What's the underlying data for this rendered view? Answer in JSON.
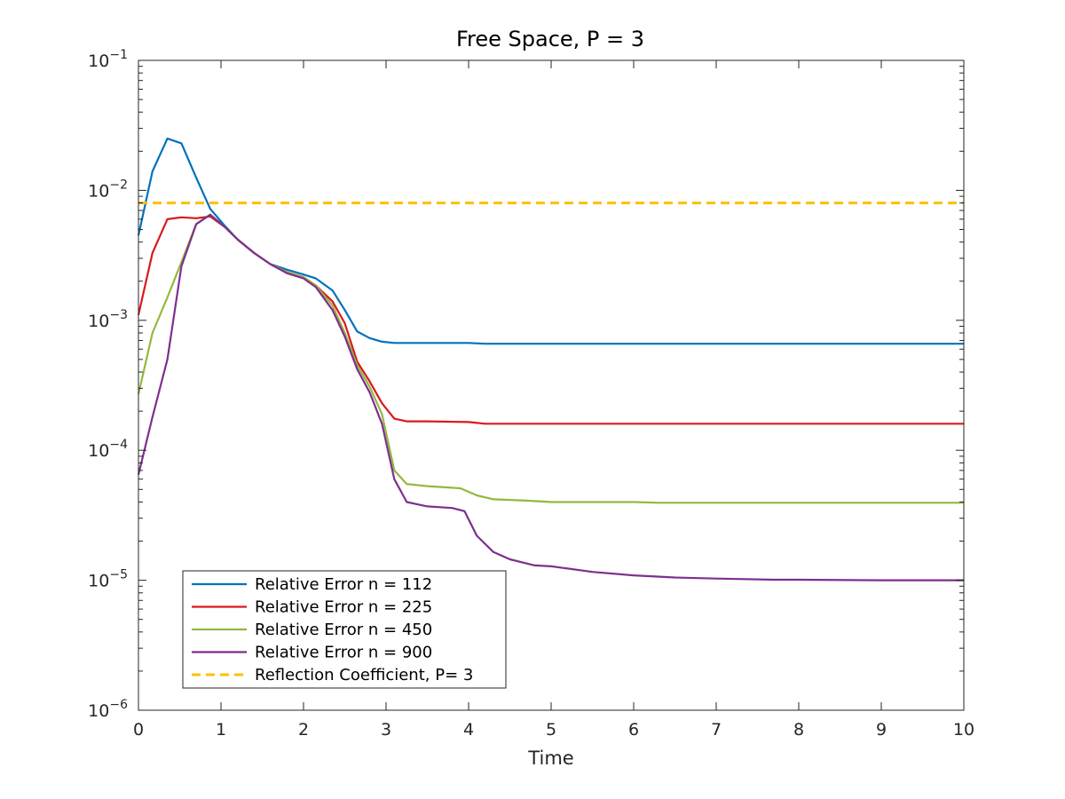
{
  "chart_data": {
    "type": "line",
    "title": "Free Space, P = 3",
    "xlabel": "Time",
    "ylabel": "",
    "xlim": [
      0,
      10
    ],
    "ylim": [
      1e-06,
      0.1
    ],
    "yscale": "log",
    "grid": false,
    "legend_position": "bottom-left",
    "x_ticks": [
      0,
      1,
      2,
      3,
      4,
      5,
      6,
      7,
      8,
      9,
      10
    ],
    "y_ticks": [
      {
        "value": 1e-06,
        "base": "10",
        "exp": "−6"
      },
      {
        "value": 1e-05,
        "base": "10",
        "exp": "−5"
      },
      {
        "value": 0.0001,
        "base": "10",
        "exp": "−4"
      },
      {
        "value": 0.001,
        "base": "10",
        "exp": "−3"
      },
      {
        "value": 0.01,
        "base": "10",
        "exp": "−2"
      },
      {
        "value": 0.1,
        "base": "10",
        "exp": "−1"
      }
    ],
    "series": [
      {
        "name": "Relative Error n = 112",
        "color": "#0072BD",
        "dash": "solid",
        "x": [
          0,
          0.17,
          0.35,
          0.52,
          0.7,
          0.87,
          1.05,
          1.2,
          1.4,
          1.6,
          1.8,
          2.0,
          2.15,
          2.35,
          2.5,
          2.65,
          2.8,
          2.95,
          3.1,
          3.5,
          4.0,
          4.2,
          5.0,
          6.0,
          7.0,
          8.0,
          9.0,
          10.0
        ],
        "y": [
          0.0045,
          0.014,
          0.025,
          0.023,
          0.0125,
          0.0072,
          0.0053,
          0.0042,
          0.0033,
          0.0027,
          0.00245,
          0.00225,
          0.0021,
          0.0017,
          0.0012,
          0.00082,
          0.00073,
          0.000685,
          0.00067,
          0.00067,
          0.00067,
          0.00066,
          0.00066,
          0.00066,
          0.00066,
          0.00066,
          0.00066,
          0.00066
        ]
      },
      {
        "name": "Relative Error n = 225",
        "color": "#D9191C",
        "dash": "solid",
        "x": [
          0,
          0.17,
          0.35,
          0.52,
          0.7,
          0.87,
          1.05,
          1.2,
          1.4,
          1.6,
          1.8,
          2.0,
          2.15,
          2.35,
          2.5,
          2.65,
          2.8,
          2.95,
          3.1,
          3.25,
          3.5,
          4.0,
          4.2,
          5.0,
          6.0,
          7.0,
          8.0,
          9.0,
          10.0
        ],
        "y": [
          0.0011,
          0.0033,
          0.006,
          0.0062,
          0.0061,
          0.0063,
          0.0052,
          0.0042,
          0.0033,
          0.0027,
          0.00235,
          0.00215,
          0.00185,
          0.0014,
          0.00095,
          0.00048,
          0.00034,
          0.00023,
          0.000175,
          0.000167,
          0.000167,
          0.000165,
          0.00016,
          0.00016,
          0.00016,
          0.00016,
          0.00016,
          0.00016,
          0.00016
        ]
      },
      {
        "name": "Relative Error n = 450",
        "color": "#93B93C",
        "dash": "solid",
        "x": [
          0,
          0.17,
          0.35,
          0.52,
          0.7,
          0.87,
          1.05,
          1.2,
          1.4,
          1.6,
          1.8,
          2.0,
          2.15,
          2.35,
          2.5,
          2.65,
          2.8,
          2.95,
          3.1,
          3.25,
          3.5,
          3.9,
          4.1,
          4.3,
          4.7,
          5.0,
          6.0,
          6.3,
          7.0,
          8.0,
          9.0,
          10.0
        ],
        "y": [
          0.00027,
          0.0008,
          0.0015,
          0.0028,
          0.0055,
          0.0065,
          0.0052,
          0.0042,
          0.0033,
          0.0027,
          0.00235,
          0.00215,
          0.00185,
          0.0013,
          0.0008,
          0.00045,
          0.00031,
          0.00019,
          7e-05,
          5.5e-05,
          5.3e-05,
          5.1e-05,
          4.5e-05,
          4.2e-05,
          4.1e-05,
          4e-05,
          4e-05,
          3.95e-05,
          3.95e-05,
          3.95e-05,
          3.95e-05,
          3.95e-05
        ]
      },
      {
        "name": "Relative Error n = 900",
        "color": "#7E2F8E",
        "dash": "solid",
        "x": [
          0,
          0.17,
          0.35,
          0.52,
          0.7,
          0.87,
          1.05,
          1.2,
          1.4,
          1.6,
          1.8,
          2.0,
          2.15,
          2.35,
          2.5,
          2.65,
          2.8,
          2.95,
          3.1,
          3.25,
          3.5,
          3.8,
          3.95,
          4.1,
          4.3,
          4.5,
          4.8,
          5.0,
          5.5,
          6.0,
          6.5,
          7.0,
          7.7,
          8.0,
          9.0,
          10.0
        ],
        "y": [
          6.5e-05,
          0.00018,
          0.0005,
          0.0026,
          0.0055,
          0.0065,
          0.0052,
          0.0042,
          0.0033,
          0.0027,
          0.0023,
          0.0021,
          0.0018,
          0.0012,
          0.00075,
          0.00042,
          0.00028,
          0.00016,
          6e-05,
          4e-05,
          3.7e-05,
          3.6e-05,
          3.4e-05,
          2.2e-05,
          1.65e-05,
          1.45e-05,
          1.3e-05,
          1.28e-05,
          1.16e-05,
          1.09e-05,
          1.05e-05,
          1.03e-05,
          1.01e-05,
          1.01e-05,
          1e-05,
          1e-05
        ]
      },
      {
        "name": "Reflection Coefficient, P= 3",
        "color": "#FFBF00",
        "dash": "dashed",
        "x": [
          0,
          10
        ],
        "y": [
          0.008,
          0.008
        ]
      }
    ]
  }
}
